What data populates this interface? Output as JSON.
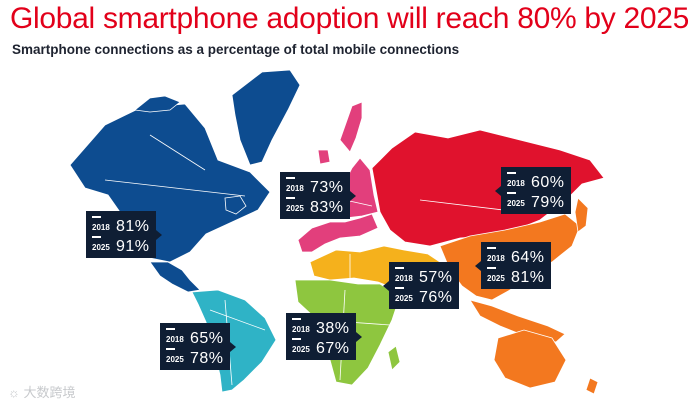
{
  "title": "Global smartphone adoption will reach 80% by 2025",
  "subtitle": "Smartphone connections as a percentage of total mobile connections",
  "regions": [
    {
      "name": "North America",
      "color": "#0d4c90",
      "year_a": "2018",
      "value_a": "81%",
      "year_b": "2025",
      "value_b": "91%"
    },
    {
      "name": "Europe",
      "color": "#e23f7c",
      "year_a": "2018",
      "value_a": "73%",
      "year_b": "2025",
      "value_b": "83%"
    },
    {
      "name": "CIS",
      "color": "#e0122d",
      "year_a": "2018",
      "value_a": "60%",
      "year_b": "2025",
      "value_b": "79%"
    },
    {
      "name": "Asia Pacific",
      "color": "#f3781f",
      "year_a": "2018",
      "value_a": "64%",
      "year_b": "2025",
      "value_b": "81%"
    },
    {
      "name": "MENA",
      "color": "#f5b11c",
      "year_a": "2018",
      "value_a": "57%",
      "year_b": "2025",
      "value_b": "76%"
    },
    {
      "name": "Sub-Saharan Africa",
      "color": "#8ec63f",
      "year_a": "2018",
      "value_a": "38%",
      "year_b": "2025",
      "value_b": "67%"
    },
    {
      "name": "Latin America",
      "color": "#2fb3c6",
      "year_a": "2018",
      "value_a": "65%",
      "year_b": "2025",
      "value_b": "78%"
    }
  ],
  "watermark": "大数跨境"
}
